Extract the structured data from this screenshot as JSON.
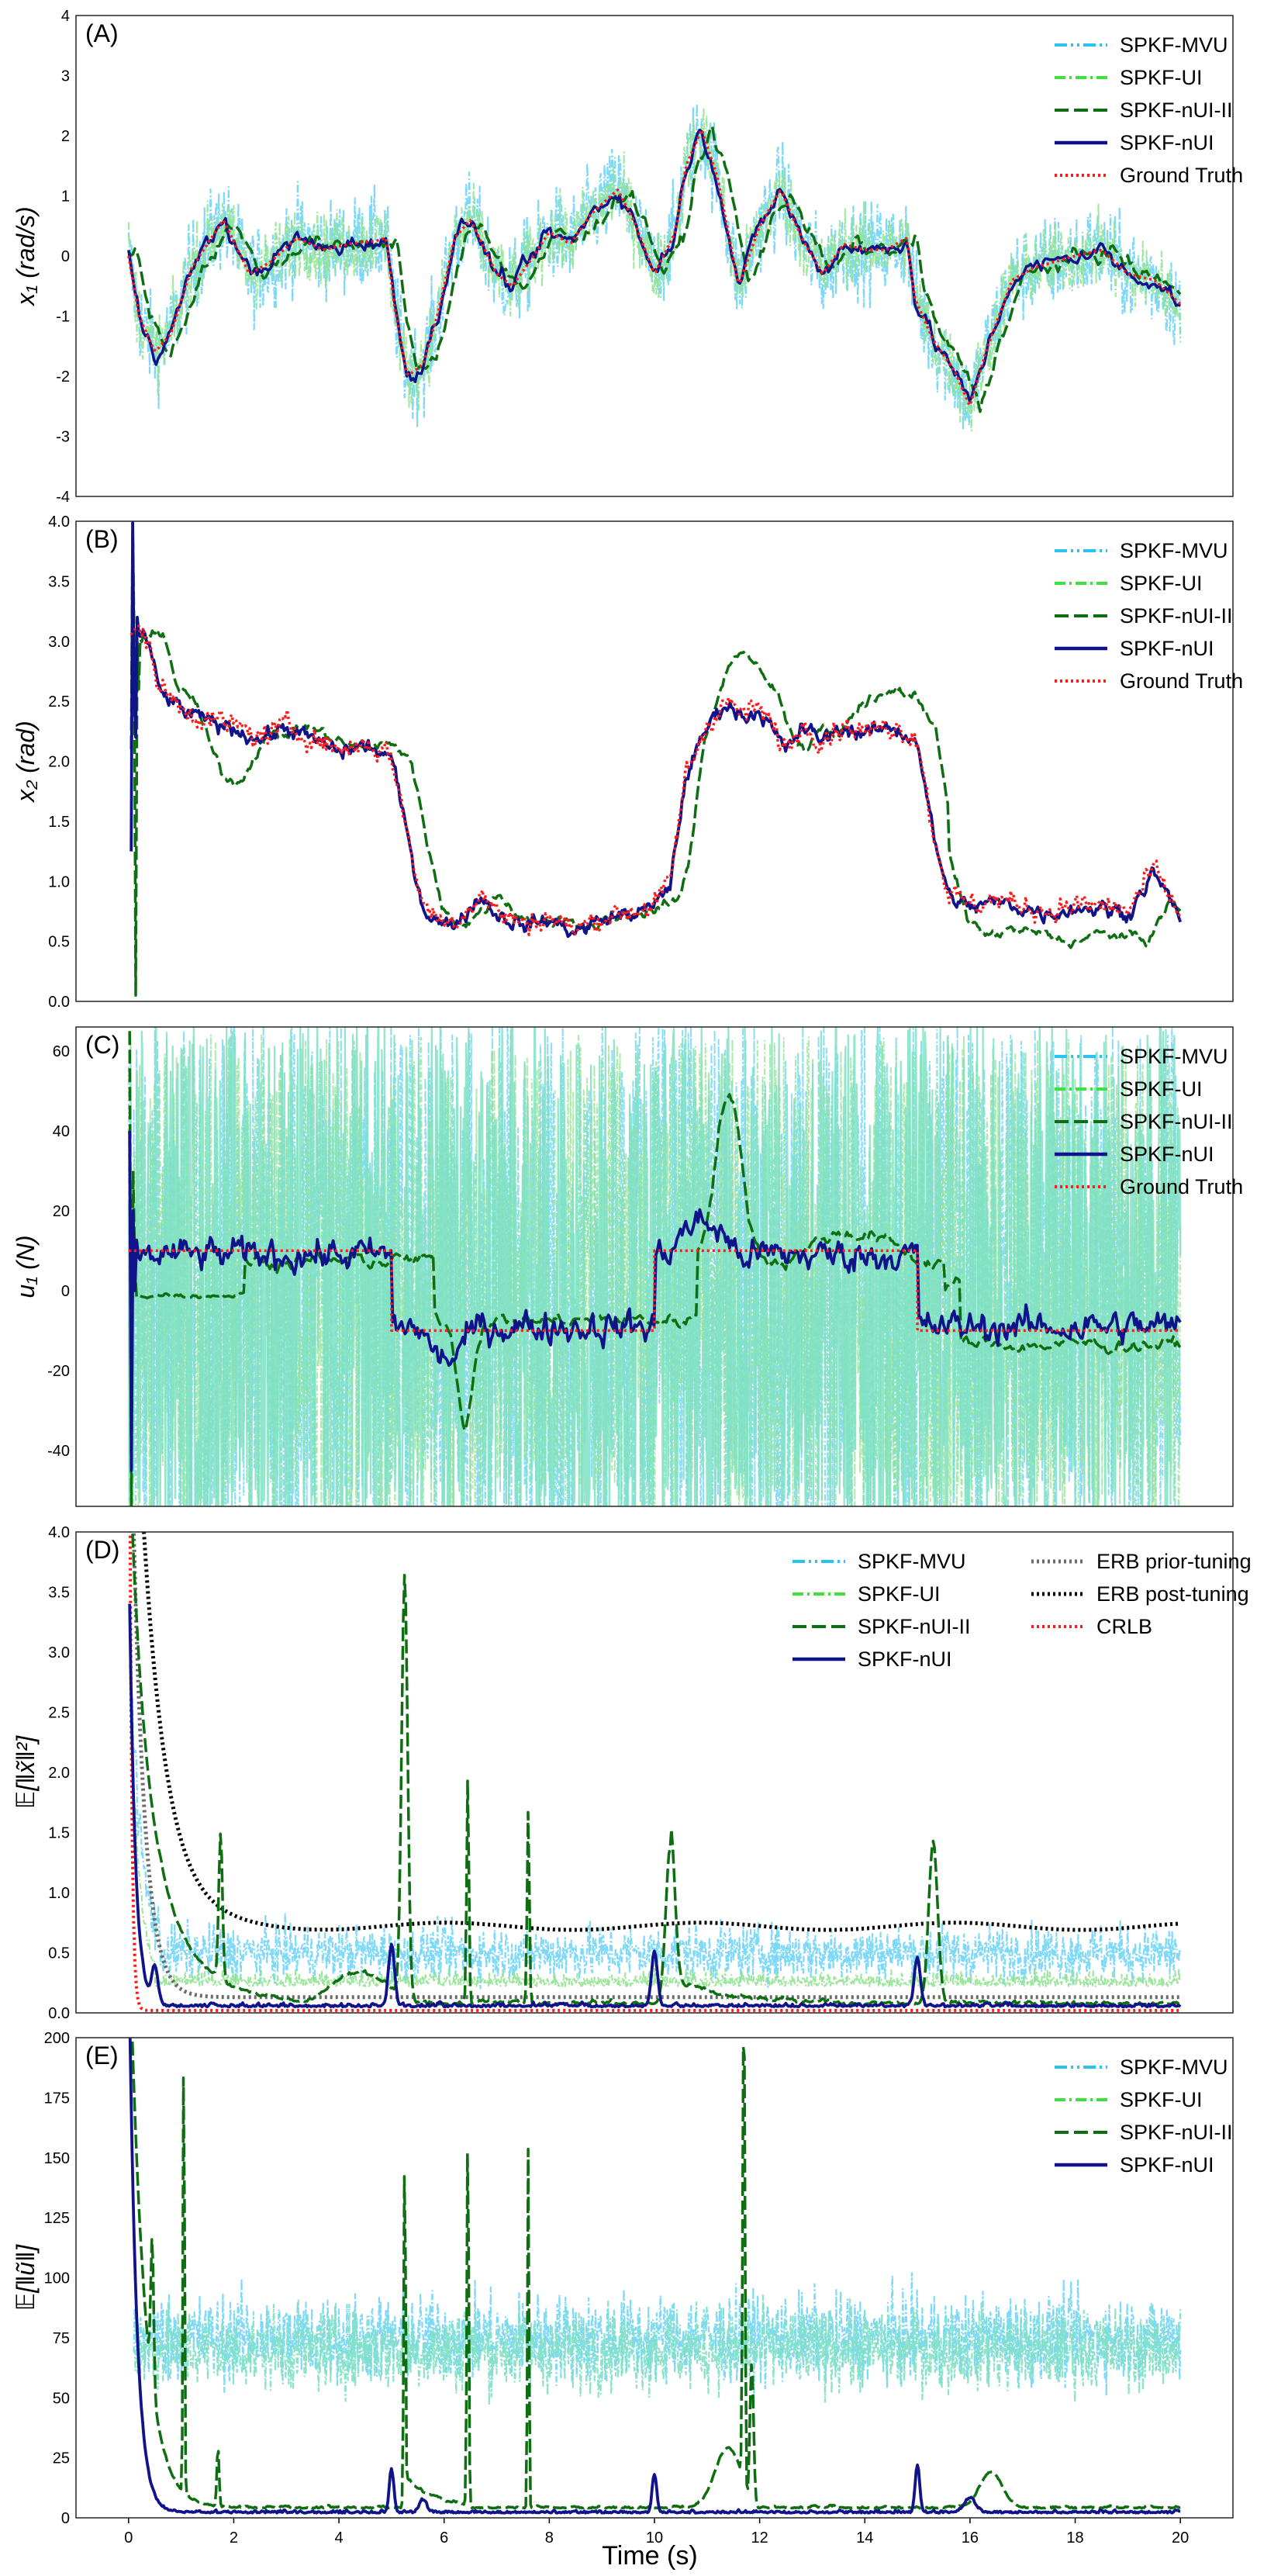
{
  "figure": {
    "xlabel": "Time (s)",
    "x_ticks": [
      "0",
      "2",
      "4",
      "6",
      "8",
      "10",
      "12",
      "14",
      "16",
      "18",
      "20"
    ],
    "xlim": [
      -1,
      21
    ]
  },
  "colors": {
    "mvu": "#29c3f0",
    "ui": "#3ee03e",
    "nui2": "#0f6e12",
    "nui": "#10138a",
    "gt": "#ff1a1a",
    "erb_prior": "#6b6b6b",
    "erb_post": "#000000",
    "crlb": "#ff1a1a",
    "noise_mvu": "#7dd9f7",
    "noise_ui": "#8fe38f",
    "noise_teal": "#7fe0c4"
  },
  "chart_data": [
    {
      "panel": "(A)",
      "type": "line",
      "ylabel": "x₁ (rad/s)",
      "ylim": [
        -4,
        4
      ],
      "y_ticks": [
        "-4",
        "-3",
        "-2",
        "-1",
        "0",
        "1",
        "2",
        "3",
        "4"
      ],
      "legend": [
        "SPKF-MVU",
        "SPKF-UI",
        "SPKF-nUI-II",
        "SPKF-nUI",
        "Ground Truth"
      ],
      "truth": {
        "x": [
          0,
          0.2,
          0.5,
          0.8,
          1.2,
          1.8,
          2.3,
          2.7,
          3.2,
          3.7,
          4.2,
          4.7,
          4.9,
          5.05,
          5.3,
          5.6,
          5.9,
          6.2,
          6.5,
          7.0,
          7.3,
          7.7,
          8.0,
          8.4,
          8.8,
          9.3,
          9.6,
          10.0,
          10.4,
          10.6,
          10.9,
          11.2,
          11.6,
          12.0,
          12.4,
          12.8,
          13.2,
          13.6,
          14.0,
          14.4,
          14.8,
          14.95,
          15.3,
          15.7,
          16.0,
          16.3,
          16.8,
          17.2,
          17.6,
          18.0,
          18.5,
          19.0,
          19.5,
          20.0
        ],
        "y": [
          0,
          -1.0,
          -1.6,
          -1.3,
          -0.2,
          0.6,
          -0.3,
          -0.1,
          0.3,
          0.1,
          0.2,
          0.25,
          0.3,
          -0.8,
          -2.0,
          -1.8,
          -0.9,
          0.3,
          0.6,
          -0.3,
          -0.5,
          0.0,
          0.4,
          0.2,
          0.7,
          1.1,
          0.6,
          -0.3,
          0.4,
          1.5,
          2.1,
          1.3,
          -0.5,
          0.5,
          1.1,
          0.3,
          -0.3,
          0.2,
          0.1,
          0.1,
          0.3,
          -0.7,
          -1.4,
          -1.9,
          -2.5,
          -1.6,
          -0.4,
          -0.2,
          -0.1,
          0.0,
          0.1,
          -0.3,
          -0.4,
          -0.8
        ]
      }
    },
    {
      "panel": "(B)",
      "type": "line",
      "ylabel": "x₂ (rad)",
      "ylim": [
        0,
        4
      ],
      "y_ticks": [
        "0.0",
        "0.5",
        "1.0",
        "1.5",
        "2.0",
        "2.5",
        "3.0",
        "3.5",
        "4.0"
      ],
      "legend": [
        "SPKF-MVU",
        "SPKF-UI",
        "SPKF-nUI-II",
        "SPKF-nUI",
        "Ground Truth"
      ],
      "truth": {
        "x": [
          0,
          0.3,
          0.6,
          1.0,
          1.5,
          2.0,
          2.5,
          3.0,
          3.5,
          4.0,
          4.5,
          5.0,
          5.3,
          5.6,
          6.0,
          6.3,
          6.7,
          7.0,
          7.5,
          8.0,
          8.5,
          9.0,
          9.5,
          10.0,
          10.3,
          10.6,
          11.0,
          11.3,
          11.7,
          12.0,
          12.5,
          12.8,
          13.2,
          13.6,
          14.0,
          14.5,
          15.0,
          15.3,
          15.6,
          16.0,
          16.5,
          17.0,
          17.5,
          18.0,
          18.5,
          19.0,
          19.5,
          20.0
        ],
        "y": [
          3.0,
          3.1,
          2.6,
          2.45,
          2.35,
          2.3,
          2.2,
          2.3,
          2.2,
          2.1,
          2.15,
          2.05,
          1.4,
          0.8,
          0.65,
          0.7,
          0.9,
          0.75,
          0.65,
          0.7,
          0.6,
          0.7,
          0.75,
          0.8,
          1.0,
          1.9,
          2.3,
          2.5,
          2.4,
          2.45,
          2.1,
          2.3,
          2.2,
          2.3,
          2.25,
          2.3,
          2.2,
          1.4,
          0.9,
          0.8,
          0.85,
          0.8,
          0.75,
          0.8,
          0.8,
          0.75,
          1.1,
          0.7
        ]
      }
    },
    {
      "panel": "(C)",
      "type": "line",
      "ylabel": "u₁ (N)",
      "ylim": [
        -54,
        66
      ],
      "y_ticks": [
        "-40",
        "-20",
        "0",
        "20",
        "40",
        "60"
      ],
      "y_tick_values": [
        -40,
        -20,
        0,
        20,
        40,
        60
      ],
      "legend": [
        "SPKF-MVU",
        "SPKF-UI",
        "SPKF-nUI-II",
        "SPKF-nUI",
        "Ground Truth"
      ],
      "truth": {
        "x": [
          0,
          5,
          5,
          10,
          10,
          15,
          15,
          20
        ],
        "y": [
          10,
          10,
          -10,
          -10,
          10,
          10,
          -10,
          -10
        ]
      }
    },
    {
      "panel": "(D)",
      "type": "line",
      "ylabel": "𝔼[‖x̃‖²]",
      "ylim": [
        0,
        4
      ],
      "y_ticks": [
        "0.0",
        "0.5",
        "1.0",
        "1.5",
        "2.0",
        "2.5",
        "3.0",
        "3.5",
        "4.0"
      ],
      "legend": [
        "SPKF-MVU",
        "SPKF-UI",
        "SPKF-nUI-II",
        "SPKF-nUI",
        "ERB prior-tuning",
        "ERB post-tuning",
        "CRLB"
      ]
    },
    {
      "panel": "(E)",
      "type": "line",
      "ylabel": "𝔼[‖ũ‖]",
      "ylim": [
        0,
        200
      ],
      "y_ticks": [
        "0",
        "25",
        "50",
        "75",
        "100",
        "125",
        "150",
        "175",
        "200"
      ],
      "legend": [
        "SPKF-MVU",
        "SPKF-UI",
        "SPKF-nUI-II",
        "SPKF-nUI"
      ]
    }
  ]
}
